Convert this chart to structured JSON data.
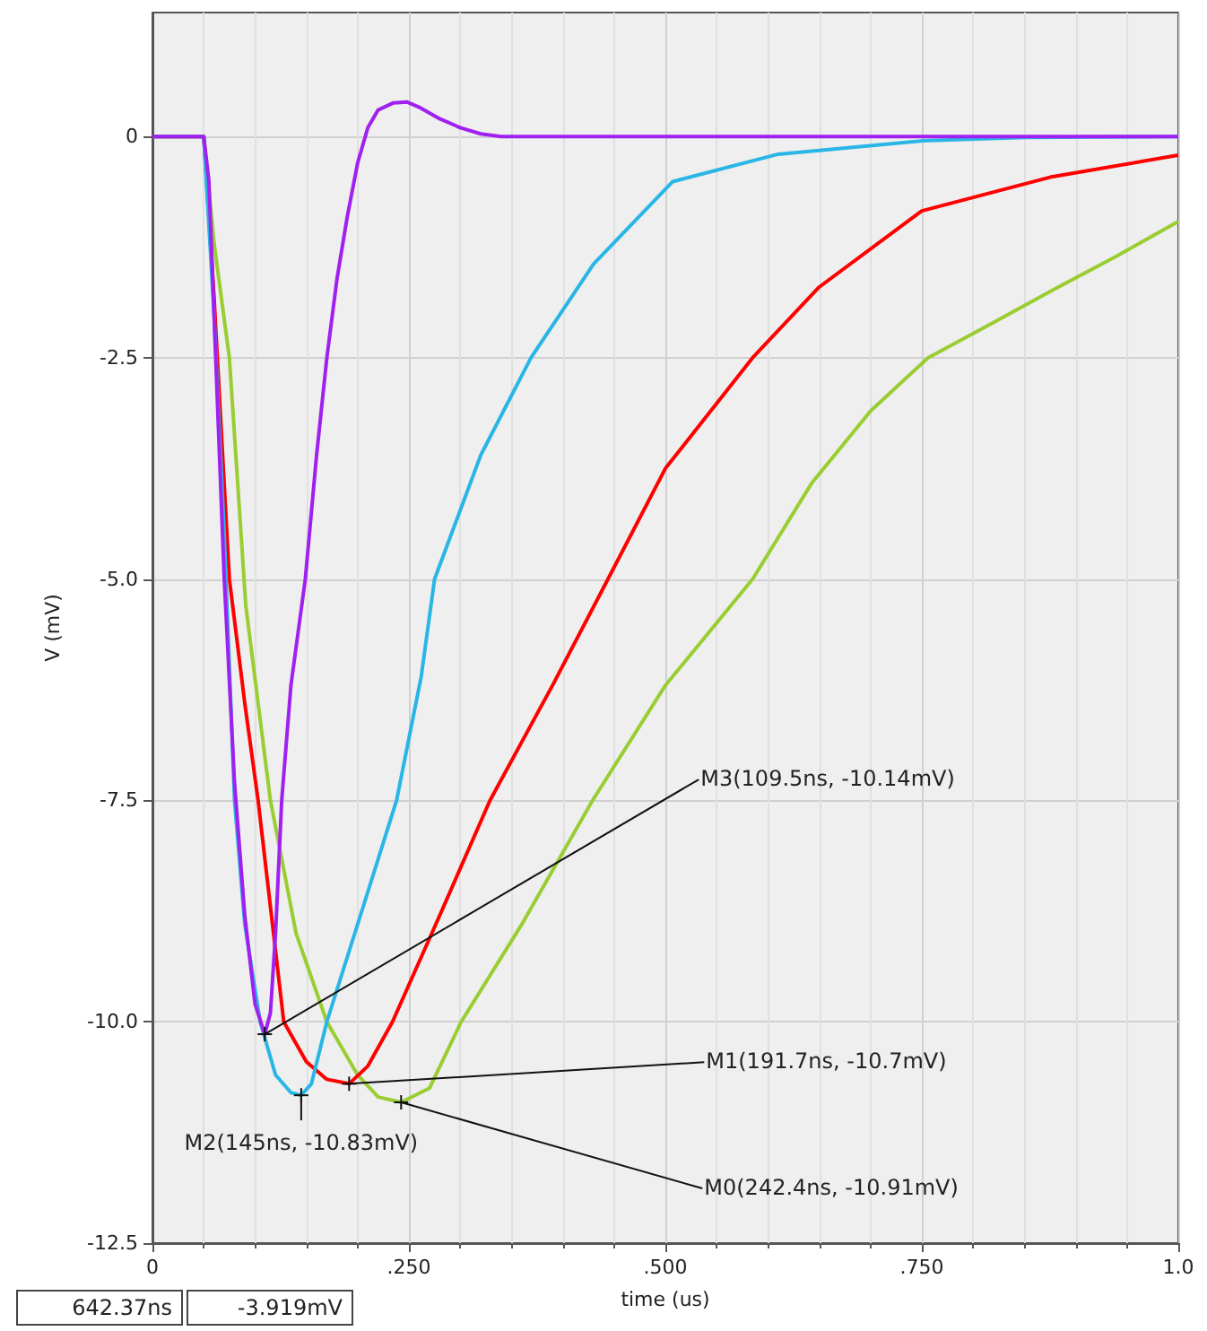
{
  "chart_data": {
    "type": "line",
    "xlabel": "time (us)",
    "ylabel": "V (mV)",
    "xlim": [
      0,
      1.0
    ],
    "ylim": [
      -12.5,
      1.4
    ],
    "xticks": [
      0,
      {
        "value": 0.25,
        "label": ".250"
      },
      {
        "value": 0.5,
        "label": ".500"
      },
      {
        "value": 0.75,
        "label": ".750"
      },
      {
        "value": 1.0,
        "label": "1.0"
      }
    ],
    "yticks": [
      0,
      {
        "value": -2.5,
        "label": "-2.5"
      },
      {
        "value": -5,
        "label": "-5.0"
      },
      {
        "value": -7.5,
        "label": "-7.5"
      },
      {
        "value": -10,
        "label": "-10.0"
      },
      {
        "value": -12.5,
        "label": "-12.5"
      }
    ],
    "grid": true,
    "marker": "none",
    "line_style": "solid",
    "series": [
      {
        "color": "#9acd32",
        "x": [
          0,
          0.05,
          0.06,
          0.075,
          0.091,
          0.115,
          0.14,
          0.17,
          0.2,
          0.22,
          0.2424,
          0.27,
          0.301,
          0.36,
          0.429,
          0.5,
          0.585,
          0.6424,
          0.7,
          0.756,
          0.82,
          0.875,
          0.94,
          1.0
        ],
        "values": [
          0,
          0,
          -1.2,
          -2.5,
          -5.3,
          -7.5,
          -9,
          -10,
          -10.6,
          -10.85,
          -10.91,
          -10.75,
          -10,
          -8.9,
          -7.5,
          -6.2,
          -5,
          -3.92,
          -3.1,
          -2.5,
          -2.1,
          -1.75,
          -1.35,
          -0.96
        ]
      },
      {
        "color": "#ff0000",
        "x": [
          0,
          0.05,
          0.06,
          0.075,
          0.09,
          0.103,
          0.128,
          0.15,
          0.17,
          0.1917,
          0.21,
          0.234,
          0.28,
          0.329,
          0.39,
          0.444,
          0.5,
          0.585,
          0.65,
          0.75,
          0.875,
          1.0
        ],
        "values": [
          0,
          0,
          -1.8,
          -5,
          -6.4,
          -7.5,
          -10,
          -10.45,
          -10.65,
          -10.7,
          -10.5,
          -10,
          -8.8,
          -7.5,
          -6.2,
          -5,
          -3.75,
          -2.5,
          -1.7,
          -0.84,
          -0.46,
          -0.21
        ]
      },
      {
        "color": "#29b6e6",
        "x": [
          0,
          0.05,
          0.06,
          0.07,
          0.08,
          0.09,
          0.105,
          0.12,
          0.135,
          0.145,
          0.155,
          0.17,
          0.2,
          0.238,
          0.262,
          0.275,
          0.32,
          0.369,
          0.43,
          0.507,
          0.61,
          0.75,
          0.85,
          1.0
        ],
        "values": [
          0,
          0,
          -2,
          -4.5,
          -7.5,
          -8.9,
          -10,
          -10.6,
          -10.8,
          -10.83,
          -10.7,
          -10,
          -8.9,
          -7.5,
          -6.1,
          -5,
          -3.6,
          -2.5,
          -1.44,
          -0.51,
          -0.2,
          -0.05,
          -0.01,
          0
        ]
      },
      {
        "color": "#a020f0",
        "x": [
          0,
          0.05,
          0.055,
          0.06,
          0.065,
          0.07,
          0.08,
          0.09,
          0.1,
          0.1095,
          0.115,
          0.12,
          0.126,
          0.135,
          0.149,
          0.16,
          0.17,
          0.18,
          0.19,
          0.2,
          0.21,
          0.22,
          0.235,
          0.248,
          0.26,
          0.28,
          0.3,
          0.32,
          0.34,
          1.0
        ],
        "values": [
          0,
          0,
          -0.5,
          -2,
          -3.5,
          -5,
          -7.3,
          -8.8,
          -9.8,
          -10.14,
          -9.9,
          -9,
          -7.5,
          -6.2,
          -5,
          -3.6,
          -2.5,
          -1.6,
          -0.9,
          -0.3,
          0.1,
          0.3,
          0.38,
          0.39,
          0.33,
          0.2,
          0.1,
          0.03,
          0,
          0
        ]
      }
    ],
    "annotations": [
      {
        "text": "M0(242.4ns, -10.91mV)",
        "x": 0.2424,
        "y": -10.91
      },
      {
        "text": "M1(191.7ns, -10.7mV)",
        "x": 0.1917,
        "y": -10.7
      },
      {
        "text": "M2(145ns, -10.83mV)",
        "x": 0.145,
        "y": -10.83
      },
      {
        "text": "M3(109.5ns, -10.14mV)",
        "x": 0.1095,
        "y": -10.14
      },
      "642.37ns",
      "-3.919mV"
    ]
  }
}
